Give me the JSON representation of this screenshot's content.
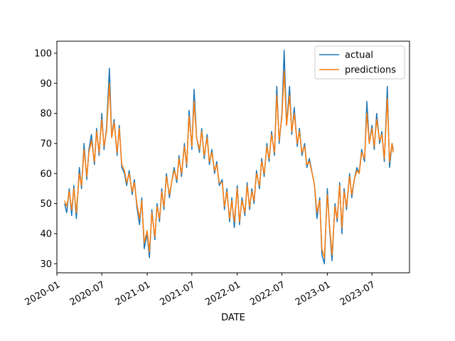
{
  "chart_data": {
    "type": "line",
    "title": "",
    "xlabel": "DATE",
    "ylabel": "",
    "x_range": [
      "2020-01-01",
      "2023-11-30"
    ],
    "ylim": [
      27,
      104
    ],
    "x_ticks": [
      "2020-01",
      "2020-07",
      "2021-01",
      "2021-07",
      "2022-01",
      "2022-07",
      "2023-01",
      "2023-07"
    ],
    "y_ticks": [
      30,
      40,
      50,
      60,
      70,
      80,
      90,
      100
    ],
    "legend_position": "top-right",
    "grid": false,
    "series": [
      {
        "name": "actual",
        "color": "#1f77b4",
        "points": [
          [
            "2020-02-01",
            50
          ],
          [
            "2020-02-10",
            47
          ],
          [
            "2020-02-20",
            55
          ],
          [
            "2020-03-01",
            46
          ],
          [
            "2020-03-10",
            56
          ],
          [
            "2020-03-20",
            45
          ],
          [
            "2020-04-01",
            62
          ],
          [
            "2020-04-10",
            55
          ],
          [
            "2020-04-20",
            70
          ],
          [
            "2020-05-01",
            58
          ],
          [
            "2020-05-10",
            68
          ],
          [
            "2020-05-20",
            73
          ],
          [
            "2020-06-01",
            63
          ],
          [
            "2020-06-10",
            75
          ],
          [
            "2020-06-20",
            66
          ],
          [
            "2020-07-01",
            80
          ],
          [
            "2020-07-10",
            68
          ],
          [
            "2020-07-20",
            75
          ],
          [
            "2020-08-01",
            95
          ],
          [
            "2020-08-10",
            72
          ],
          [
            "2020-08-20",
            78
          ],
          [
            "2020-09-01",
            66
          ],
          [
            "2020-09-10",
            76
          ],
          [
            "2020-09-20",
            62
          ],
          [
            "2020-10-01",
            60
          ],
          [
            "2020-10-10",
            56
          ],
          [
            "2020-10-20",
            61
          ],
          [
            "2020-11-01",
            53
          ],
          [
            "2020-11-10",
            58
          ],
          [
            "2020-11-20",
            49
          ],
          [
            "2020-12-01",
            43
          ],
          [
            "2020-12-10",
            52
          ],
          [
            "2020-12-20",
            35
          ],
          [
            "2021-01-01",
            40
          ],
          [
            "2021-01-10",
            32
          ],
          [
            "2021-01-20",
            48
          ],
          [
            "2021-02-01",
            38
          ],
          [
            "2021-02-10",
            50
          ],
          [
            "2021-02-20",
            44
          ],
          [
            "2021-03-01",
            55
          ],
          [
            "2021-03-10",
            48
          ],
          [
            "2021-03-20",
            60
          ],
          [
            "2021-04-01",
            52
          ],
          [
            "2021-04-10",
            57
          ],
          [
            "2021-04-20",
            62
          ],
          [
            "2021-05-01",
            57
          ],
          [
            "2021-05-10",
            66
          ],
          [
            "2021-05-20",
            59
          ],
          [
            "2021-06-01",
            70
          ],
          [
            "2021-06-10",
            62
          ],
          [
            "2021-06-20",
            81
          ],
          [
            "2021-07-01",
            68
          ],
          [
            "2021-07-10",
            88
          ],
          [
            "2021-07-20",
            72
          ],
          [
            "2021-08-01",
            67
          ],
          [
            "2021-08-10",
            75
          ],
          [
            "2021-08-20",
            65
          ],
          [
            "2021-09-01",
            73
          ],
          [
            "2021-09-10",
            63
          ],
          [
            "2021-09-20",
            68
          ],
          [
            "2021-10-01",
            60
          ],
          [
            "2021-10-10",
            64
          ],
          [
            "2021-10-20",
            56
          ],
          [
            "2021-11-01",
            58
          ],
          [
            "2021-11-10",
            48
          ],
          [
            "2021-11-20",
            55
          ],
          [
            "2021-12-01",
            44
          ],
          [
            "2021-12-10",
            52
          ],
          [
            "2021-12-20",
            42
          ],
          [
            "2022-01-01",
            56
          ],
          [
            "2022-01-10",
            43
          ],
          [
            "2022-01-20",
            52
          ],
          [
            "2022-02-01",
            46
          ],
          [
            "2022-02-10",
            57
          ],
          [
            "2022-02-20",
            48
          ],
          [
            "2022-03-01",
            55
          ],
          [
            "2022-03-10",
            50
          ],
          [
            "2022-03-20",
            61
          ],
          [
            "2022-04-01",
            55
          ],
          [
            "2022-04-10",
            65
          ],
          [
            "2022-04-20",
            59
          ],
          [
            "2022-05-01",
            70
          ],
          [
            "2022-05-10",
            64
          ],
          [
            "2022-05-20",
            74
          ],
          [
            "2022-06-01",
            66
          ],
          [
            "2022-06-10",
            89
          ],
          [
            "2022-06-20",
            70
          ],
          [
            "2022-07-01",
            80
          ],
          [
            "2022-07-10",
            101
          ],
          [
            "2022-07-20",
            76
          ],
          [
            "2022-08-01",
            89
          ],
          [
            "2022-08-10",
            73
          ],
          [
            "2022-08-20",
            82
          ],
          [
            "2022-09-01",
            69
          ],
          [
            "2022-09-10",
            75
          ],
          [
            "2022-09-20",
            66
          ],
          [
            "2022-10-01",
            70
          ],
          [
            "2022-10-10",
            62
          ],
          [
            "2022-10-20",
            65
          ],
          [
            "2022-11-01",
            60
          ],
          [
            "2022-11-10",
            56
          ],
          [
            "2022-11-20",
            45
          ],
          [
            "2022-12-01",
            52
          ],
          [
            "2022-12-10",
            33
          ],
          [
            "2022-12-20",
            30
          ],
          [
            "2023-01-01",
            55
          ],
          [
            "2023-01-10",
            42
          ],
          [
            "2023-01-20",
            31
          ],
          [
            "2023-02-01",
            50
          ],
          [
            "2023-02-10",
            44
          ],
          [
            "2023-02-20",
            57
          ],
          [
            "2023-03-01",
            40
          ],
          [
            "2023-03-10",
            55
          ],
          [
            "2023-03-20",
            48
          ],
          [
            "2023-04-01",
            60
          ],
          [
            "2023-04-10",
            52
          ],
          [
            "2023-04-20",
            58
          ],
          [
            "2023-05-01",
            62
          ],
          [
            "2023-05-10",
            60
          ],
          [
            "2023-05-20",
            68
          ],
          [
            "2023-06-01",
            64
          ],
          [
            "2023-06-10",
            84
          ],
          [
            "2023-06-20",
            70
          ],
          [
            "2023-07-01",
            76
          ],
          [
            "2023-07-10",
            68
          ],
          [
            "2023-07-20",
            80
          ],
          [
            "2023-08-01",
            70
          ],
          [
            "2023-08-10",
            74
          ],
          [
            "2023-08-20",
            64
          ],
          [
            "2023-09-01",
            89
          ],
          [
            "2023-09-10",
            62
          ],
          [
            "2023-09-20",
            70
          ],
          [
            "2023-09-25",
            68
          ]
        ]
      },
      {
        "name": "predictions",
        "color": "#ff7f0e",
        "points": [
          [
            "2020-02-01",
            51
          ],
          [
            "2020-02-10",
            49
          ],
          [
            "2020-02-20",
            54
          ],
          [
            "2020-03-01",
            48
          ],
          [
            "2020-03-10",
            55
          ],
          [
            "2020-03-20",
            47
          ],
          [
            "2020-04-01",
            60
          ],
          [
            "2020-04-10",
            56
          ],
          [
            "2020-04-20",
            68
          ],
          [
            "2020-05-01",
            59
          ],
          [
            "2020-05-10",
            67
          ],
          [
            "2020-05-20",
            71
          ],
          [
            "2020-06-01",
            64
          ],
          [
            "2020-06-10",
            74
          ],
          [
            "2020-06-20",
            67
          ],
          [
            "2020-07-01",
            78
          ],
          [
            "2020-07-10",
            69
          ],
          [
            "2020-07-20",
            74
          ],
          [
            "2020-08-01",
            90
          ],
          [
            "2020-08-10",
            72
          ],
          [
            "2020-08-20",
            77
          ],
          [
            "2020-09-01",
            67
          ],
          [
            "2020-09-10",
            75
          ],
          [
            "2020-09-20",
            63
          ],
          [
            "2020-10-01",
            61
          ],
          [
            "2020-10-10",
            57
          ],
          [
            "2020-10-20",
            60
          ],
          [
            "2020-11-01",
            54
          ],
          [
            "2020-11-10",
            57
          ],
          [
            "2020-11-20",
            50
          ],
          [
            "2020-12-01",
            45
          ],
          [
            "2020-12-10",
            51
          ],
          [
            "2020-12-20",
            37
          ],
          [
            "2021-01-01",
            41
          ],
          [
            "2021-01-10",
            34
          ],
          [
            "2021-01-20",
            47
          ],
          [
            "2021-02-01",
            39
          ],
          [
            "2021-02-10",
            49
          ],
          [
            "2021-02-20",
            45
          ],
          [
            "2021-03-01",
            54
          ],
          [
            "2021-03-10",
            49
          ],
          [
            "2021-03-20",
            59
          ],
          [
            "2021-04-01",
            53
          ],
          [
            "2021-04-10",
            57
          ],
          [
            "2021-04-20",
            61
          ],
          [
            "2021-05-01",
            58
          ],
          [
            "2021-05-10",
            65
          ],
          [
            "2021-05-20",
            60
          ],
          [
            "2021-06-01",
            69
          ],
          [
            "2021-06-10",
            63
          ],
          [
            "2021-06-20",
            79
          ],
          [
            "2021-07-01",
            69
          ],
          [
            "2021-07-10",
            84
          ],
          [
            "2021-07-20",
            72
          ],
          [
            "2021-08-01",
            68
          ],
          [
            "2021-08-10",
            74
          ],
          [
            "2021-08-20",
            66
          ],
          [
            "2021-09-01",
            72
          ],
          [
            "2021-09-10",
            64
          ],
          [
            "2021-09-20",
            67
          ],
          [
            "2021-10-01",
            61
          ],
          [
            "2021-10-10",
            63
          ],
          [
            "2021-10-20",
            57
          ],
          [
            "2021-11-01",
            57
          ],
          [
            "2021-11-10",
            49
          ],
          [
            "2021-11-20",
            54
          ],
          [
            "2021-12-01",
            45
          ],
          [
            "2021-12-10",
            51
          ],
          [
            "2021-12-20",
            44
          ],
          [
            "2022-01-01",
            55
          ],
          [
            "2022-01-10",
            44
          ],
          [
            "2022-01-20",
            51
          ],
          [
            "2022-02-01",
            47
          ],
          [
            "2022-02-10",
            56
          ],
          [
            "2022-02-20",
            49
          ],
          [
            "2022-03-01",
            54
          ],
          [
            "2022-03-10",
            51
          ],
          [
            "2022-03-20",
            60
          ],
          [
            "2022-04-01",
            56
          ],
          [
            "2022-04-10",
            64
          ],
          [
            "2022-04-20",
            60
          ],
          [
            "2022-05-01",
            69
          ],
          [
            "2022-05-10",
            65
          ],
          [
            "2022-05-20",
            73
          ],
          [
            "2022-06-01",
            67
          ],
          [
            "2022-06-10",
            86
          ],
          [
            "2022-06-20",
            71
          ],
          [
            "2022-07-01",
            79
          ],
          [
            "2022-07-10",
            94
          ],
          [
            "2022-07-20",
            76
          ],
          [
            "2022-08-01",
            86
          ],
          [
            "2022-08-10",
            74
          ],
          [
            "2022-08-20",
            80
          ],
          [
            "2022-09-01",
            70
          ],
          [
            "2022-09-10",
            74
          ],
          [
            "2022-09-20",
            67
          ],
          [
            "2022-10-01",
            69
          ],
          [
            "2022-10-10",
            63
          ],
          [
            "2022-10-20",
            64
          ],
          [
            "2022-11-01",
            60
          ],
          [
            "2022-11-10",
            56
          ],
          [
            "2022-11-20",
            47
          ],
          [
            "2022-12-01",
            51
          ],
          [
            "2022-12-10",
            35
          ],
          [
            "2022-12-20",
            32
          ],
          [
            "2023-01-01",
            53
          ],
          [
            "2023-01-10",
            43
          ],
          [
            "2023-01-20",
            33
          ],
          [
            "2023-02-01",
            49
          ],
          [
            "2023-02-10",
            45
          ],
          [
            "2023-02-20",
            56
          ],
          [
            "2023-03-01",
            42
          ],
          [
            "2023-03-10",
            54
          ],
          [
            "2023-03-20",
            49
          ],
          [
            "2023-04-01",
            59
          ],
          [
            "2023-04-10",
            53
          ],
          [
            "2023-04-20",
            58
          ],
          [
            "2023-05-01",
            61
          ],
          [
            "2023-05-10",
            60
          ],
          [
            "2023-05-20",
            67
          ],
          [
            "2023-06-01",
            65
          ],
          [
            "2023-06-10",
            80
          ],
          [
            "2023-06-20",
            70
          ],
          [
            "2023-07-01",
            75
          ],
          [
            "2023-07-10",
            69
          ],
          [
            "2023-07-20",
            78
          ],
          [
            "2023-08-01",
            71
          ],
          [
            "2023-08-10",
            73
          ],
          [
            "2023-08-20",
            65
          ],
          [
            "2023-09-01",
            85
          ],
          [
            "2023-09-10",
            64
          ],
          [
            "2023-09-20",
            70
          ],
          [
            "2023-09-25",
            67
          ]
        ]
      }
    ]
  }
}
